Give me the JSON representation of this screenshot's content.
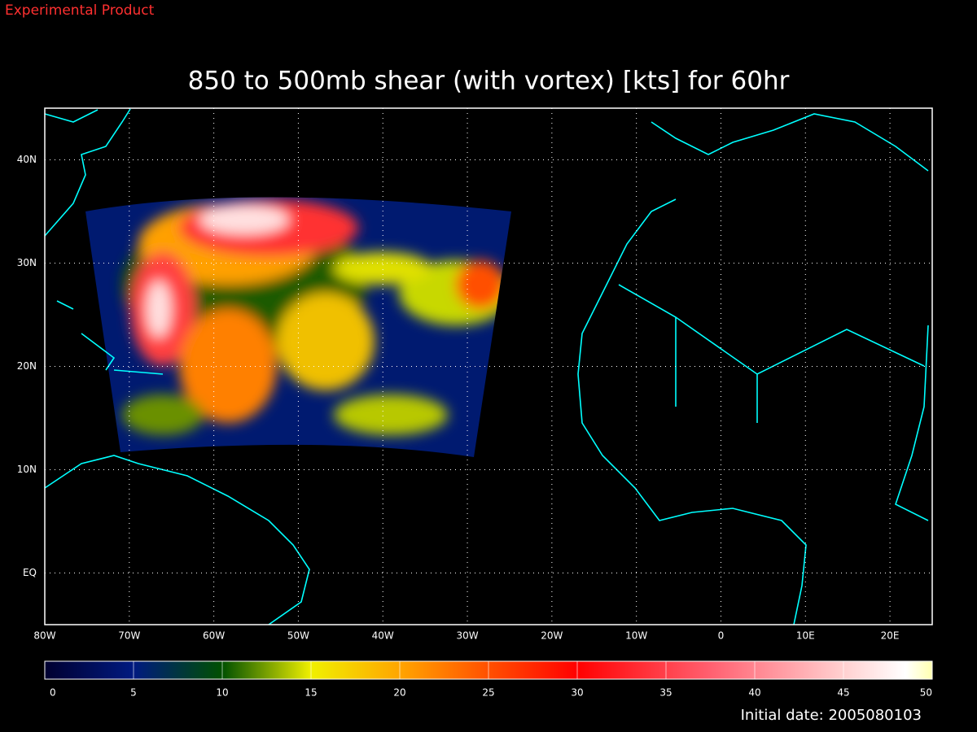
{
  "header": {
    "note": "Experimental Product"
  },
  "map": {
    "title": "850 to 500mb shear (with vortex) [kts] for 60hr",
    "lonlim": [
      -80,
      25
    ],
    "latlim": [
      -5,
      45
    ],
    "lon_ticks": [
      {
        "value": -80,
        "label": "80W"
      },
      {
        "value": -70,
        "label": "70W"
      },
      {
        "value": -60,
        "label": "60W"
      },
      {
        "value": -50,
        "label": "50W"
      },
      {
        "value": -40,
        "label": "40W"
      },
      {
        "value": -30,
        "label": "30W"
      },
      {
        "value": -20,
        "label": "20W"
      },
      {
        "value": -10,
        "label": "10W"
      },
      0,
      {
        "value": 10,
        "label": "10E"
      },
      {
        "value": 20,
        "label": "20E"
      }
    ],
    "lat_ticks": [
      {
        "value": 40,
        "label": "40N"
      },
      {
        "value": 30,
        "label": "30N"
      },
      {
        "value": 20,
        "label": "20N"
      },
      {
        "value": 10,
        "label": "10N"
      },
      {
        "value": 0,
        "label": "EQ"
      }
    ]
  },
  "colorbar": {
    "lim": [
      0,
      50
    ],
    "ticks": [
      0,
      5,
      10,
      15,
      20,
      25,
      30,
      35,
      40,
      45,
      50
    ]
  },
  "footer": {
    "initial_date": "Initial date: 2005080103"
  }
}
